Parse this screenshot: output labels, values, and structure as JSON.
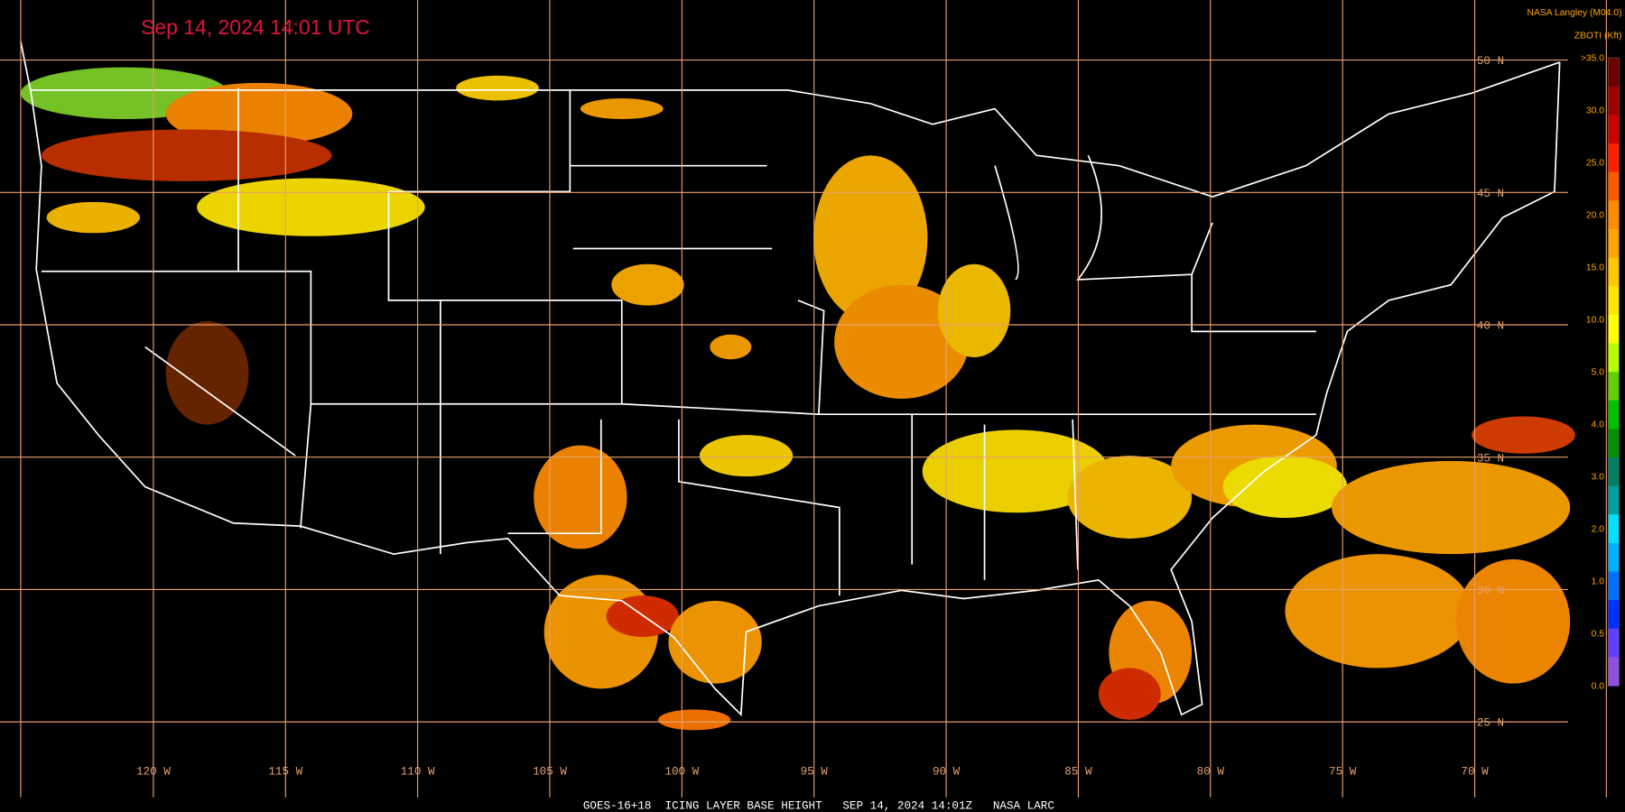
{
  "header": {
    "timestamp": "Sep 14, 2024 14:01 UTC",
    "source": "NASA Langley (M04.0)",
    "product": "ZBOTI (Kft)"
  },
  "legend": {
    "labels": [
      ">35.0",
      "30.0",
      "25.0",
      "20.0",
      "15.0",
      "10.0",
      "5.0",
      "4.0",
      "3.0",
      "2.0",
      "1.0",
      "0.5",
      "0.0"
    ]
  },
  "grid": {
    "latitudes": [
      "50 N",
      "45 N",
      "40 N",
      "35 N",
      "30 N",
      "25 N"
    ],
    "longitudes": [
      "120 W",
      "115 W",
      "110 W",
      "105 W",
      "100 W",
      "95 W",
      "90 W",
      "85 W",
      "80 W",
      "75 W",
      "70 W"
    ]
  },
  "footer": "GOES-16+18  ICING LAYER BASE HEIGHT   SEP 14, 2024 14:01Z   NASA LARC"
}
